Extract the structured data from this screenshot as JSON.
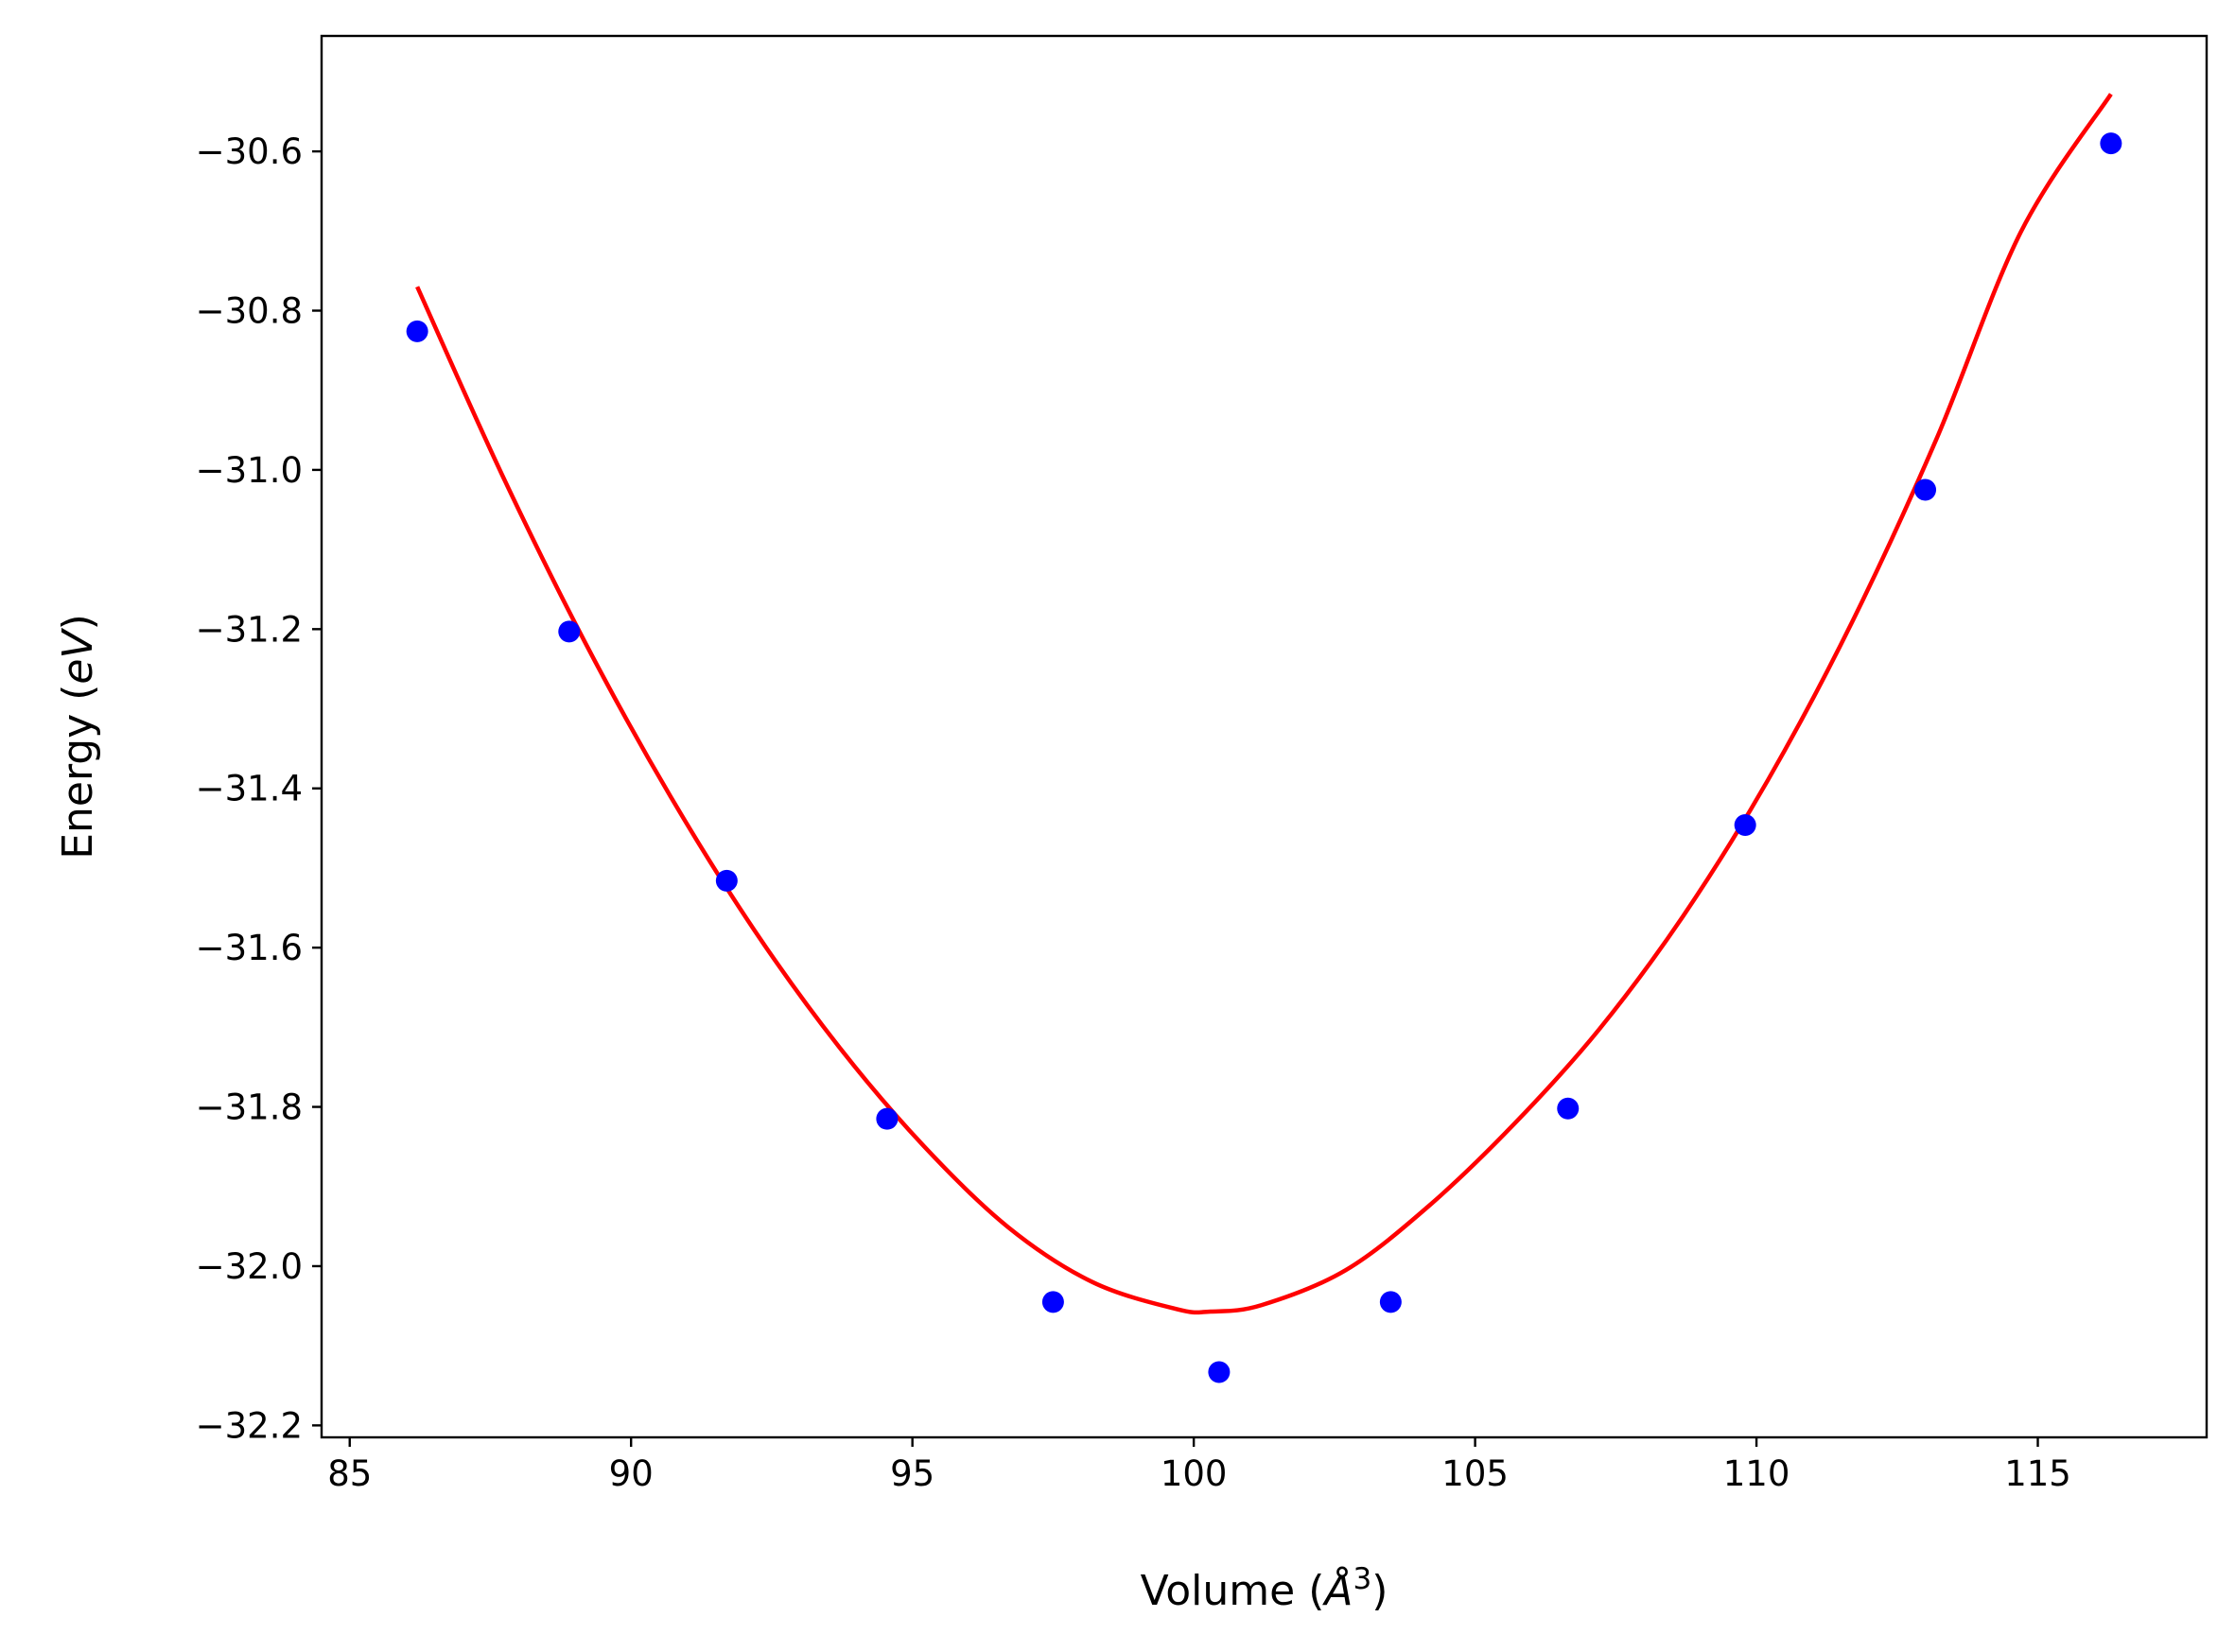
{
  "chart_data": {
    "type": "scatter",
    "title": "",
    "xlabel": "Volume",
    "xlabel_unit_base": "Å",
    "xlabel_unit_exp": "3",
    "ylabel": "Energy",
    "ylabel_unit": "eV",
    "xlim": [
      84.5,
      118.0
    ],
    "ylim": [
      -32.215,
      -30.455
    ],
    "xticks": [
      85,
      90,
      95,
      100,
      105,
      110,
      115
    ],
    "xtick_labels": [
      "85",
      "90",
      "95",
      "100",
      "105",
      "110",
      "115"
    ],
    "yticks": [
      -30.6,
      -30.8,
      -31.0,
      -31.2,
      -31.4,
      -31.6,
      -31.8,
      -32.0,
      -32.2
    ],
    "ytick_labels": [
      "−30.6",
      "−30.8",
      "−31.0",
      "−31.2",
      "−31.4",
      "−31.6",
      "−31.8",
      "−32.0",
      "−32.2"
    ],
    "grid": false,
    "series": [
      {
        "kind": "points",
        "color": "#0000ff",
        "x": [
          86.2,
          88.9,
          91.7,
          94.55,
          97.5,
          100.45,
          103.5,
          106.65,
          109.8,
          113.0,
          116.3
        ],
        "y": [
          -30.826,
          -31.203,
          -31.516,
          -31.815,
          -32.045,
          -32.133,
          -32.045,
          -31.802,
          -31.446,
          -31.025,
          -30.59
        ]
      },
      {
        "kind": "fit-curve",
        "color": "#ff0000",
        "x": [
          86.2,
          87.7,
          89.2,
          90.7,
          92.2,
          93.7,
          95.2,
          96.7,
          98.2,
          99.7,
          100.3,
          101.2,
          102.7,
          104.2,
          105.7,
          107.2,
          108.7,
          110.2,
          111.7,
          113.2,
          114.7,
          116.3
        ],
        "y": [
          -30.77,
          -31.005,
          -31.219,
          -31.41,
          -31.579,
          -31.725,
          -31.849,
          -31.951,
          -32.02,
          -32.054,
          -32.057,
          -32.049,
          -32.005,
          -31.923,
          -31.821,
          -31.703,
          -31.56,
          -31.39,
          -31.191,
          -30.961,
          -30.701,
          -30.528
        ]
      }
    ]
  }
}
